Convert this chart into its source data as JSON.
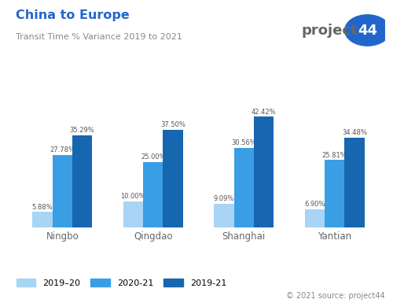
{
  "title": "China to Europe",
  "subtitle": "Transit Time % Variance 2019 to 2021",
  "categories": [
    "Ningbo",
    "Qingdao",
    "Shanghai",
    "Yantian"
  ],
  "series": {
    "2019-20": [
      5.88,
      10.0,
      9.09,
      6.9
    ],
    "2020-21": [
      27.78,
      25.0,
      30.56,
      25.81
    ],
    "2019-21": [
      35.29,
      37.5,
      42.42,
      34.48
    ]
  },
  "colors": {
    "2019-20": "#a8d4f5",
    "2020-21": "#3a9ee4",
    "2019-21": "#1666b0"
  },
  "title_color": "#2266cc",
  "subtitle_color": "#888888",
  "bar_label_color": "#555555",
  "xtick_color": "#666666",
  "background_color": "#ffffff",
  "grid_color": "#d0d0d0",
  "ylim": [
    0,
    50
  ],
  "bar_width": 0.22,
  "source_text": "© 2021 source: project44",
  "legend_labels": [
    "2019–20",
    "2020-21",
    "2019-21"
  ]
}
